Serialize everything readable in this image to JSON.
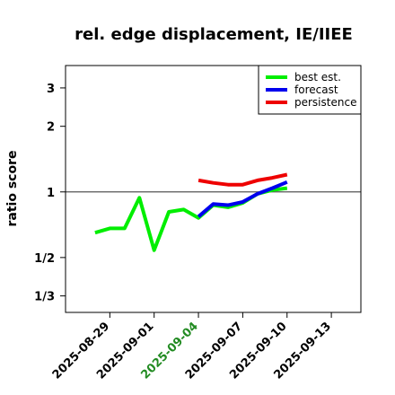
{
  "chart_data": {
    "type": "line",
    "title": "rel. edge displacement, IE/IIEE",
    "xlabel": "",
    "ylabel": "ratio score",
    "y_scale": "log",
    "ylim": [
      0.28,
      3.8
    ],
    "xlim": [
      "2025-08-26",
      "2025-09-15"
    ],
    "y_ticks": [
      {
        "value": 3,
        "label": "3"
      },
      {
        "value": 2,
        "label": "2"
      },
      {
        "value": 1,
        "label": "1"
      },
      {
        "value": 0.5,
        "label": "1/2"
      },
      {
        "value": 0.3333,
        "label": "1/3"
      }
    ],
    "x_ticks": [
      {
        "date": "2025-08-29",
        "label": "2025-08-29",
        "color": "#000000"
      },
      {
        "date": "2025-09-01",
        "label": "2025-09-01",
        "color": "#000000"
      },
      {
        "date": "2025-09-04",
        "label": "2025-09-04",
        "color": "#228B22"
      },
      {
        "date": "2025-09-07",
        "label": "2025-09-07",
        "color": "#000000"
      },
      {
        "date": "2025-09-10",
        "label": "2025-09-10",
        "color": "#000000"
      },
      {
        "date": "2025-09-13",
        "label": "2025-09-13",
        "color": "#000000"
      }
    ],
    "reference_line": 1,
    "legend_position": "top-right",
    "series": [
      {
        "name": "best est.",
        "color": "#00ee00",
        "points": [
          [
            "2025-08-28",
            0.65
          ],
          [
            "2025-08-29",
            0.68
          ],
          [
            "2025-08-30",
            0.68
          ],
          [
            "2025-08-31",
            0.94
          ],
          [
            "2025-09-01",
            0.54
          ],
          [
            "2025-09-02",
            0.81
          ],
          [
            "2025-09-03",
            0.83
          ],
          [
            "2025-09-04",
            0.76
          ],
          [
            "2025-09-05",
            0.87
          ],
          [
            "2025-09-06",
            0.85
          ],
          [
            "2025-09-07",
            0.89
          ],
          [
            "2025-09-08",
            0.98
          ],
          [
            "2025-09-09",
            1.02
          ],
          [
            "2025-09-10",
            1.04
          ]
        ]
      },
      {
        "name": "forecast",
        "color": "#0000ee",
        "points": [
          [
            "2025-09-04",
            0.77
          ],
          [
            "2025-09-05",
            0.88
          ],
          [
            "2025-09-06",
            0.87
          ],
          [
            "2025-09-07",
            0.9
          ],
          [
            "2025-09-08",
            0.98
          ],
          [
            "2025-09-09",
            1.04
          ],
          [
            "2025-09-10",
            1.11
          ]
        ]
      },
      {
        "name": "persistence",
        "color": "#ee0000",
        "points": [
          [
            "2025-09-04",
            1.13
          ],
          [
            "2025-09-05",
            1.1
          ],
          [
            "2025-09-06",
            1.08
          ],
          [
            "2025-09-07",
            1.08
          ],
          [
            "2025-09-08",
            1.13
          ],
          [
            "2025-09-09",
            1.16
          ],
          [
            "2025-09-10",
            1.2
          ]
        ]
      }
    ]
  }
}
